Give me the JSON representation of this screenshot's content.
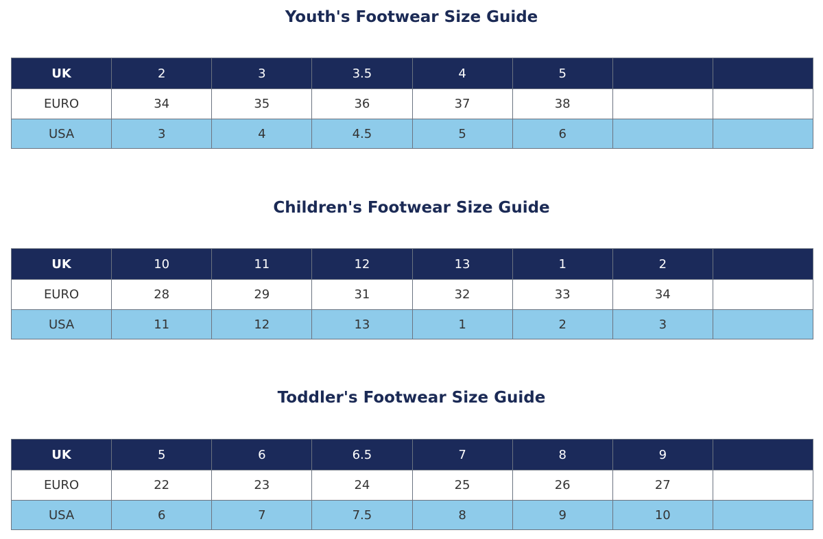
{
  "tables": [
    {
      "title": "Youth's Footwear Size Guide",
      "rows": [
        [
          "UK",
          "2",
          "3",
          "3.5",
          "4",
          "5"
        ],
        [
          "EURO",
          "34",
          "35",
          "36",
          "37",
          "38"
        ],
        [
          "USA",
          "3",
          "4",
          "4.5",
          "5",
          "6"
        ]
      ]
    },
    {
      "title": "Children's Footwear Size Guide",
      "rows": [
        [
          "UK",
          "10",
          "11",
          "12",
          "13",
          "1",
          "2"
        ],
        [
          "EURO",
          "28",
          "29",
          "31",
          "32",
          "33",
          "34"
        ],
        [
          "USA",
          "11",
          "12",
          "13",
          "1",
          "2",
          "3"
        ]
      ]
    },
    {
      "title": "Toddler's Footwear Size Guide",
      "rows": [
        [
          "UK",
          "5",
          "6",
          "6.5",
          "7",
          "8",
          "9"
        ],
        [
          "EURO",
          "22",
          "23",
          "24",
          "25",
          "26",
          "27"
        ],
        [
          "USA",
          "6",
          "7",
          "7.5",
          "8",
          "9",
          "10"
        ]
      ]
    }
  ]
}
